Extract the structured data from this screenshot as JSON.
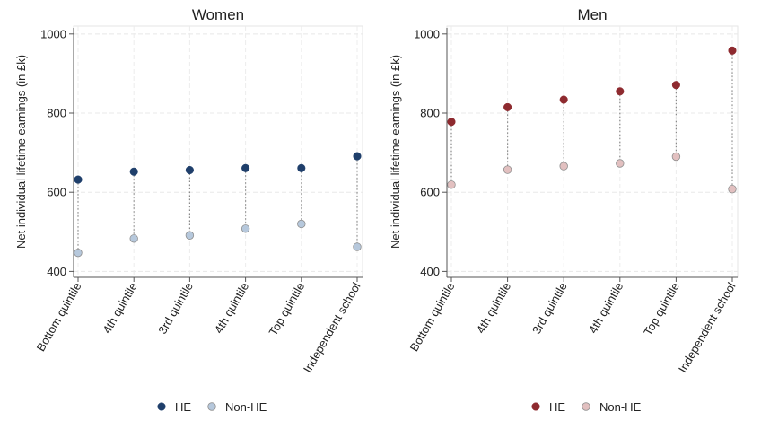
{
  "chart_data": [
    {
      "type": "scatter",
      "title": "Women",
      "xlabel": "",
      "ylabel": "Net individual lifetime earnings (in £k)",
      "ylim": [
        385,
        1020
      ],
      "yticks": [
        400,
        600,
        800,
        1000
      ],
      "grid": true,
      "categories": [
        "Bottom quintile",
        "4th quintile",
        "3rd quintile",
        "4th quintile",
        "Top quintile",
        "Independent school"
      ],
      "series": [
        {
          "name": "HE",
          "color": "#1f3f6b",
          "values": [
            632,
            652,
            656,
            661,
            661,
            691
          ]
        },
        {
          "name": "Non-HE",
          "color": "#b6c8dc",
          "values": [
            447,
            483,
            491,
            508,
            520,
            462
          ]
        }
      ],
      "legend": "bottom"
    },
    {
      "type": "scatter",
      "title": "Men",
      "xlabel": "",
      "ylabel": "Net individual lifetime earnings (in £k)",
      "ylim": [
        385,
        1020
      ],
      "yticks": [
        400,
        600,
        800,
        1000
      ],
      "grid": true,
      "categories": [
        "Bottom quintile",
        "4th quintile",
        "3rd quintile",
        "4th quintile",
        "Top quintile",
        "Independent school"
      ],
      "series": [
        {
          "name": "HE",
          "color": "#8e2a2f",
          "values": [
            778,
            815,
            834,
            855,
            871,
            958
          ]
        },
        {
          "name": "Non-HE",
          "color": "#e2c0c0",
          "values": [
            619,
            657,
            666,
            673,
            690,
            608
          ]
        }
      ],
      "legend": "bottom"
    }
  ]
}
